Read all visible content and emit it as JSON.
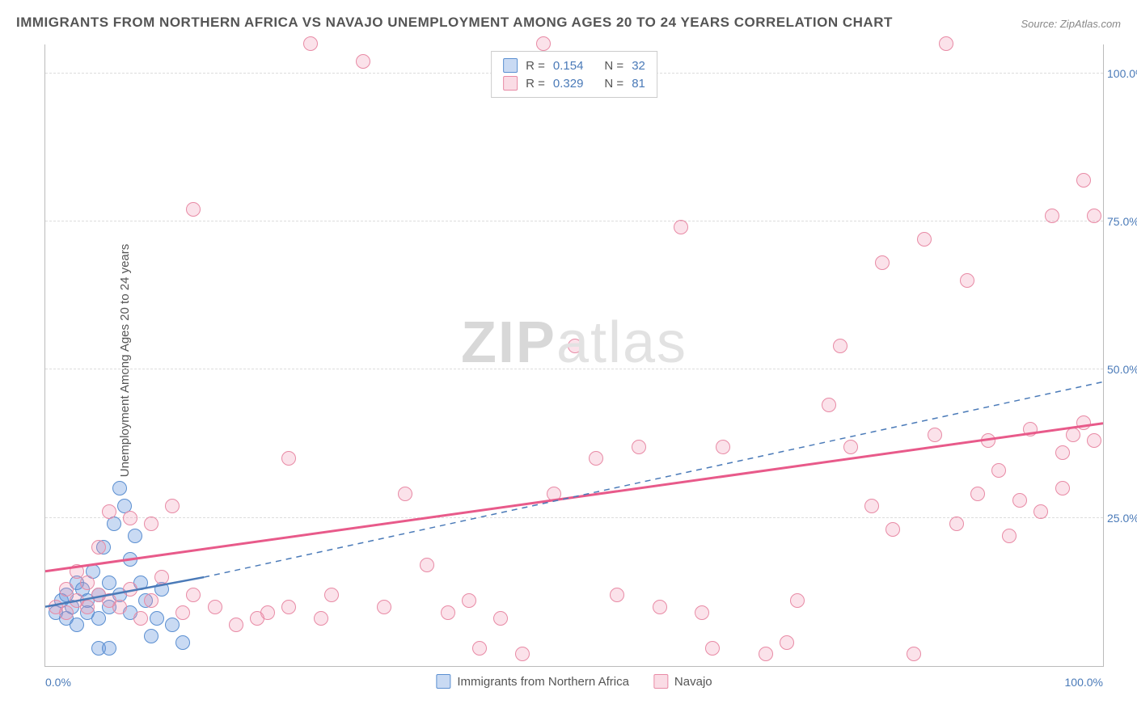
{
  "title": "IMMIGRANTS FROM NORTHERN AFRICA VS NAVAJO UNEMPLOYMENT AMONG AGES 20 TO 24 YEARS CORRELATION CHART",
  "source": "Source: ZipAtlas.com",
  "watermark_a": "ZIP",
  "watermark_b": "atlas",
  "yaxis_label": "Unemployment Among Ages 20 to 24 years",
  "chart": {
    "type": "scatter",
    "xlim": [
      0,
      100
    ],
    "ylim": [
      0,
      105
    ],
    "yticks": [
      25,
      50,
      75,
      100
    ],
    "ytick_labels": [
      "25.0%",
      "50.0%",
      "75.0%",
      "100.0%"
    ],
    "xtick_left": "0.0%",
    "xtick_right": "100.0%",
    "grid_color": "#dddddd",
    "background_color": "#ffffff",
    "series": [
      {
        "name": "Immigrants from Northern Africa",
        "color_fill": "rgba(100,150,220,0.35)",
        "color_stroke": "#5b8fd1",
        "marker_size": 18,
        "R": "0.154",
        "N": "32",
        "trend": {
          "x1": 0,
          "y1": 10,
          "x2": 15,
          "y2": 15,
          "dash_x2": 100,
          "dash_y2": 48,
          "stroke": "#4a7ab8",
          "width": 2.5
        },
        "points": [
          [
            1,
            9
          ],
          [
            1.5,
            11
          ],
          [
            2,
            8
          ],
          [
            2,
            12
          ],
          [
            2.5,
            10
          ],
          [
            3,
            14
          ],
          [
            3,
            7
          ],
          [
            3.5,
            13
          ],
          [
            4,
            11
          ],
          [
            4,
            9
          ],
          [
            4.5,
            16
          ],
          [
            5,
            12
          ],
          [
            5,
            8
          ],
          [
            5.5,
            20
          ],
          [
            6,
            10
          ],
          [
            6,
            14
          ],
          [
            6.5,
            24
          ],
          [
            7,
            12
          ],
          [
            7,
            30
          ],
          [
            7.5,
            27
          ],
          [
            8,
            9
          ],
          [
            8,
            18
          ],
          [
            8.5,
            22
          ],
          [
            9,
            14
          ],
          [
            9.5,
            11
          ],
          [
            10,
            5
          ],
          [
            10.5,
            8
          ],
          [
            11,
            13
          ],
          [
            12,
            7
          ],
          [
            13,
            4
          ],
          [
            5,
            3
          ],
          [
            6,
            3
          ]
        ]
      },
      {
        "name": "Navajo",
        "color_fill": "rgba(240,140,170,0.25)",
        "color_stroke": "#e88aa5",
        "marker_size": 18,
        "R": "0.329",
        "N": "81",
        "trend": {
          "x1": 0,
          "y1": 16,
          "x2": 100,
          "y2": 41,
          "stroke": "#e85a8a",
          "width": 3
        },
        "points": [
          [
            1,
            10
          ],
          [
            2,
            9
          ],
          [
            2,
            13
          ],
          [
            3,
            11
          ],
          [
            3,
            16
          ],
          [
            4,
            10
          ],
          [
            4,
            14
          ],
          [
            5,
            12
          ],
          [
            5,
            20
          ],
          [
            6,
            11
          ],
          [
            6,
            26
          ],
          [
            7,
            10
          ],
          [
            8,
            13
          ],
          [
            8,
            25
          ],
          [
            9,
            8
          ],
          [
            10,
            24
          ],
          [
            10,
            11
          ],
          [
            11,
            15
          ],
          [
            12,
            27
          ],
          [
            13,
            9
          ],
          [
            14,
            77
          ],
          [
            14,
            12
          ],
          [
            16,
            10
          ],
          [
            18,
            7
          ],
          [
            20,
            8
          ],
          [
            21,
            9
          ],
          [
            23,
            35
          ],
          [
            23,
            10
          ],
          [
            25,
            105
          ],
          [
            26,
            8
          ],
          [
            27,
            12
          ],
          [
            30,
            102
          ],
          [
            32,
            10
          ],
          [
            34,
            29
          ],
          [
            36,
            17
          ],
          [
            38,
            9
          ],
          [
            40,
            11
          ],
          [
            41,
            3
          ],
          [
            43,
            8
          ],
          [
            45,
            2
          ],
          [
            47,
            105
          ],
          [
            48,
            29
          ],
          [
            50,
            54
          ],
          [
            52,
            35
          ],
          [
            54,
            12
          ],
          [
            56,
            37
          ],
          [
            58,
            10
          ],
          [
            60,
            74
          ],
          [
            62,
            9
          ],
          [
            63,
            3
          ],
          [
            64,
            37
          ],
          [
            68,
            2
          ],
          [
            70,
            4
          ],
          [
            71,
            11
          ],
          [
            74,
            44
          ],
          [
            75,
            54
          ],
          [
            76,
            37
          ],
          [
            78,
            27
          ],
          [
            79,
            68
          ],
          [
            80,
            23
          ],
          [
            82,
            2
          ],
          [
            83,
            72
          ],
          [
            84,
            39
          ],
          [
            85,
            105
          ],
          [
            86,
            24
          ],
          [
            87,
            65
          ],
          [
            88,
            29
          ],
          [
            89,
            38
          ],
          [
            90,
            33
          ],
          [
            91,
            22
          ],
          [
            92,
            28
          ],
          [
            93,
            40
          ],
          [
            94,
            26
          ],
          [
            95,
            76
          ],
          [
            96,
            36
          ],
          [
            96,
            30
          ],
          [
            97,
            39
          ],
          [
            98,
            41
          ],
          [
            98,
            82
          ],
          [
            99,
            38
          ],
          [
            99,
            76
          ]
        ]
      }
    ]
  },
  "legend_top": {
    "r_label": "R =",
    "n_label": "N ="
  },
  "legend_bottom": [
    {
      "swatch": "blue",
      "label": "Immigrants from Northern Africa"
    },
    {
      "swatch": "pink",
      "label": "Navajo"
    }
  ]
}
